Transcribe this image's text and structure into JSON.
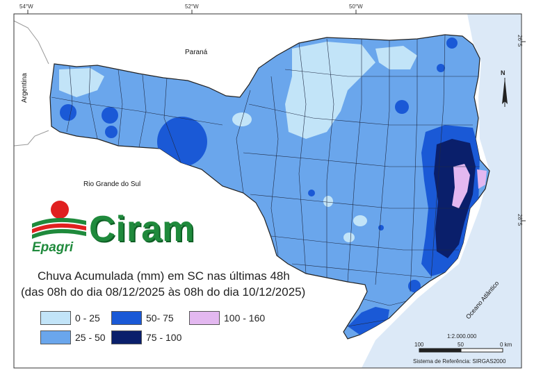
{
  "map": {
    "coordinates": {
      "lon_54": "54°W",
      "lon_52": "52°W",
      "lon_50": "50°W",
      "lat_26": "26°S",
      "lat_28": "28°S"
    },
    "regions": {
      "parana": "Paraná",
      "rio_grande_do_sul": "Rio Grande do Sul",
      "argentina": "Argentina",
      "ocean": "Oceano Atlântico"
    },
    "north_arrow": "N",
    "colors": {
      "ocean": "#dce9f7",
      "frame": "#333333",
      "class_0_25": "#c2e4f8",
      "class_25_50": "#6aa6ec",
      "class_50_75": "#1a59d6",
      "class_75_100": "#0a1f6b",
      "class_100_160": "#e3b8f0"
    }
  },
  "branding": {
    "logo_ciram": "Ciram",
    "logo_epagri": "Epagri"
  },
  "title": {
    "line1": "Chuva Acumulada (mm) em SC nas últimas 48h",
    "line2": "(das 08h do dia 08/12/2025 às 08h do dia 10/12/2025)"
  },
  "legend": [
    {
      "label": "0 - 25",
      "color": "#c2e4f8"
    },
    {
      "label": "25 - 50",
      "color": "#6aa6ec"
    },
    {
      "label": "50- 75",
      "color": "#1a59d6"
    },
    {
      "label": "75 - 100",
      "color": "#0a1f6b"
    },
    {
      "label": "100 - 160",
      "color": "#e3b8f0"
    }
  ],
  "scale": {
    "ratio": "1:2.000.000",
    "tick_100": "100",
    "tick_50": "50",
    "tick_0": "0 km"
  },
  "reference": "Sistema de Referência: SIRGAS2000"
}
